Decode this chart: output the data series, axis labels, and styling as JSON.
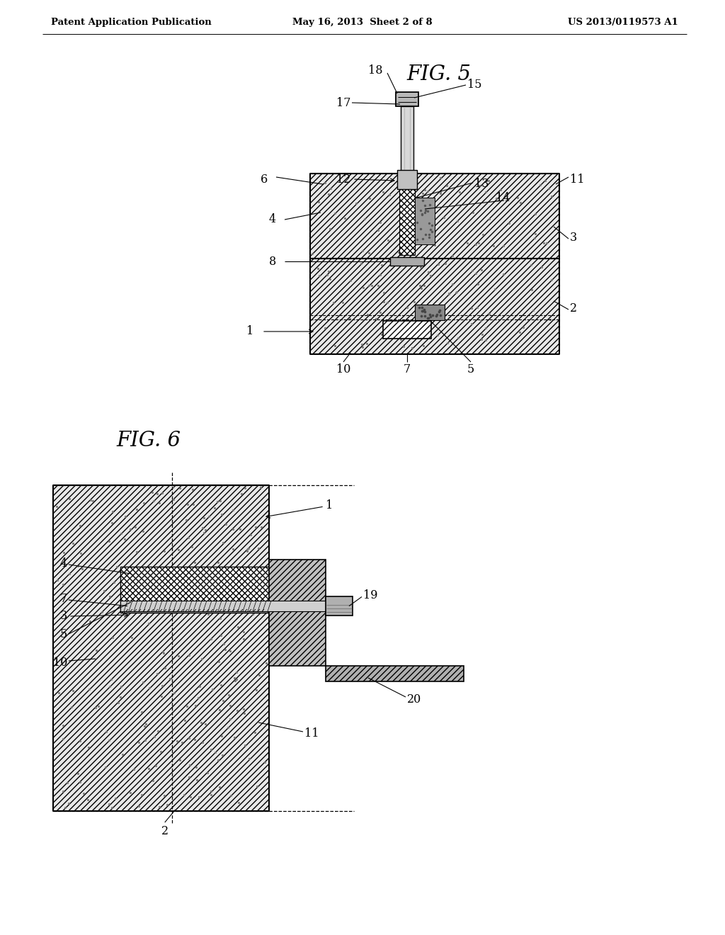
{
  "bg": "#ffffff",
  "hdr_l": "Patent Application Publication",
  "hdr_c": "May 16, 2013  Sheet 2 of 8",
  "hdr_r": "US 2013/0119573 A1",
  "fig5_title": "FIG. 5",
  "fig6_title": "FIG. 6",
  "lc": "#000000",
  "concrete_fc": "#e8e8e8",
  "hatch_fc": "#ffffff",
  "gray_fc": "#c0c0c0",
  "dark_fc": "#888888"
}
